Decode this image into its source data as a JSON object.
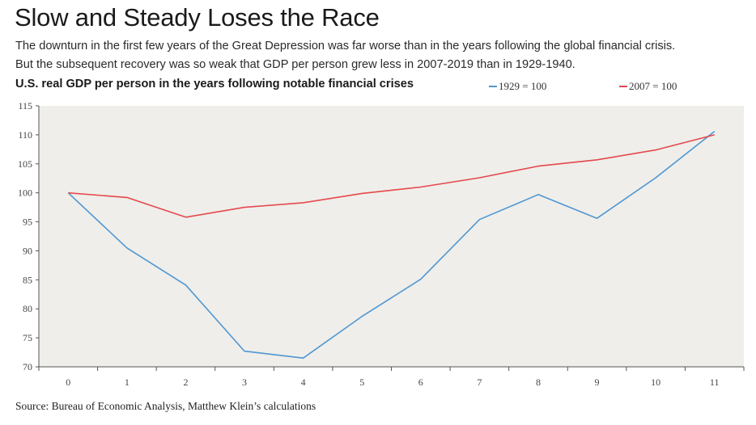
{
  "header": {
    "title": "Slow and Steady Loses the Race",
    "subtitle_line1": "The downturn in the first few years of the Great Depression was far worse than in the years following the global financial crisis.",
    "subtitle_line2": "But the subsequent recovery was so weak that GDP per person grew less in 2007-2019 than in 1929-1940."
  },
  "footer": {
    "source": "Source: Bureau of Economic Analysis, Matthew Klein’s calculations"
  },
  "chart_data": {
    "type": "line",
    "title": "U.S. real GDP per person in the years following notable financial crises",
    "x": [
      0,
      1,
      2,
      3,
      4,
      5,
      6,
      7,
      8,
      9,
      10,
      11
    ],
    "x_tick_labels": [
      "0",
      "1",
      "2",
      "3",
      "4",
      "5",
      "6",
      "7",
      "8",
      "9",
      "10",
      "11"
    ],
    "y_ticks": [
      70,
      75,
      80,
      85,
      90,
      95,
      100,
      105,
      110,
      115
    ],
    "ylim": [
      70,
      115
    ],
    "xlim": [
      -0.5,
      11.5
    ],
    "grid": "horizontal",
    "legend_position": "top-right",
    "series": [
      {
        "name": "1929 = 100",
        "color": "#4f97d3",
        "values": [
          100,
          90.5,
          84.1,
          72.7,
          71.5,
          78.7,
          85.1,
          95.4,
          99.7,
          95.6,
          102.6,
          110.6
        ]
      },
      {
        "name": "2007 = 100",
        "color": "#e5484d",
        "values": [
          100,
          99.2,
          95.8,
          97.5,
          98.3,
          99.9,
          101.0,
          102.6,
          104.6,
          105.7,
          107.4,
          110.0
        ]
      }
    ]
  }
}
